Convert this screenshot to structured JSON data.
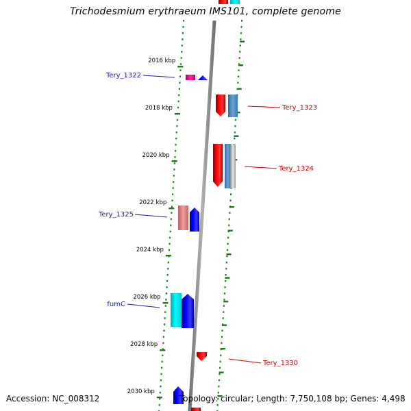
{
  "title": "Trichodesmium erythraeum IMS101, complete genome",
  "footer": {
    "accession": "Accession: NC_008312",
    "summary": "Topology: circular; Length: 7,750,108 bp; Genes: 4,498"
  },
  "colors": {
    "forward_gene": "#0000ee",
    "reverse_gene": "#ee0000",
    "forward_label": "#1a1aa8",
    "reverse_label": "#cc0000",
    "backbone": "#888888",
    "tick": "#1a7a1a",
    "tick_label": "#000000"
  },
  "axis": {
    "unit": "kbp",
    "ticks": [
      {
        "value": 2016,
        "label": "2016 kbp"
      },
      {
        "value": 2018,
        "label": "2018 kbp"
      },
      {
        "value": 2020,
        "label": "2020 kbp"
      },
      {
        "value": 2022,
        "label": "2022 kbp"
      },
      {
        "value": 2024,
        "label": "2024 kbp"
      },
      {
        "value": 2026,
        "label": "2026 kbp"
      },
      {
        "value": 2028,
        "label": "2028 kbp"
      },
      {
        "value": 2030,
        "label": "2030 kbp"
      }
    ]
  },
  "gene_labels": [
    {
      "name": "Tery_1322",
      "strand": "forward"
    },
    {
      "name": "Tery_1323",
      "strand": "reverse"
    },
    {
      "name": "Tery_1324",
      "strand": "reverse"
    },
    {
      "name": "Tery_1325",
      "strand": "forward"
    },
    {
      "name": "fumC",
      "strand": "forward"
    },
    {
      "name": "Tery_1330",
      "strand": "reverse"
    }
  ]
}
